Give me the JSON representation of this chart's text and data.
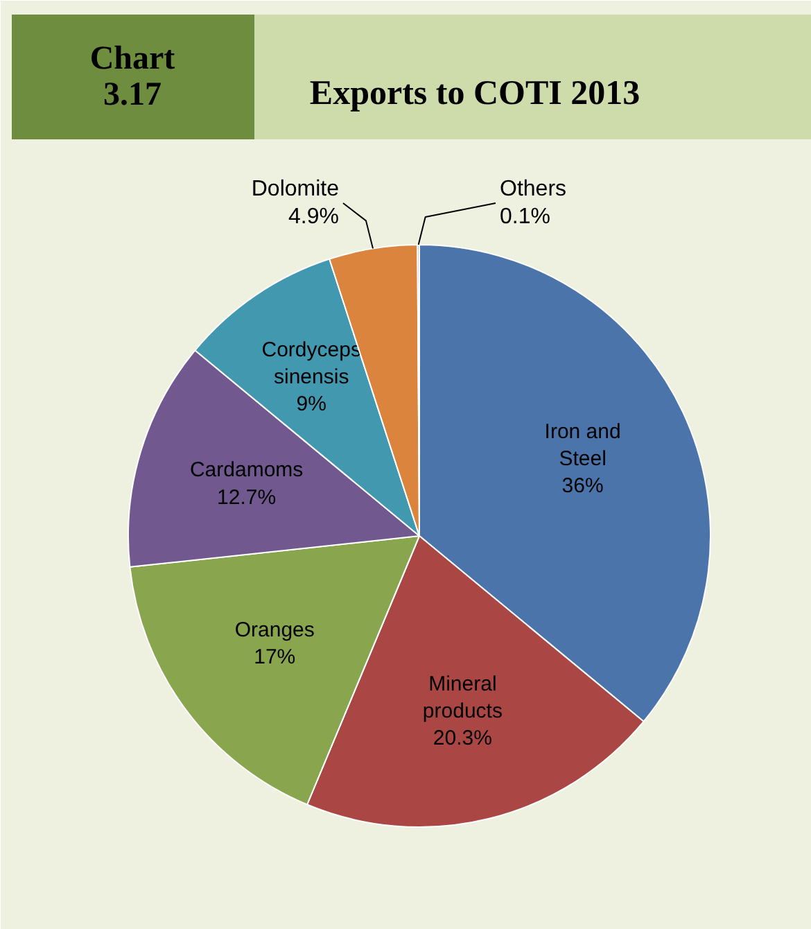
{
  "chart_data": {
    "type": "pie",
    "title": "Exports to COTI 2013",
    "annotations": [
      "Chart\n3.17"
    ],
    "categories": [
      "Iron and\nSteel",
      "Mineral\nproducts",
      "Oranges",
      "Cardamoms",
      "Cordyceps\nsinensis",
      "Dolomite",
      "Others"
    ],
    "values": [
      36,
      20.3,
      17,
      12.7,
      9,
      4.9,
      0.1
    ],
    "colors": [
      "#4a74aa",
      "#aa4644",
      "#89a54e",
      "#71588f",
      "#4198af",
      "#db843d",
      "#93a9cf"
    ],
    "value_labels": [
      "36%",
      "20.3%",
      "17%",
      "12.7%",
      "9%",
      "4.9%",
      "0.1%"
    ]
  }
}
